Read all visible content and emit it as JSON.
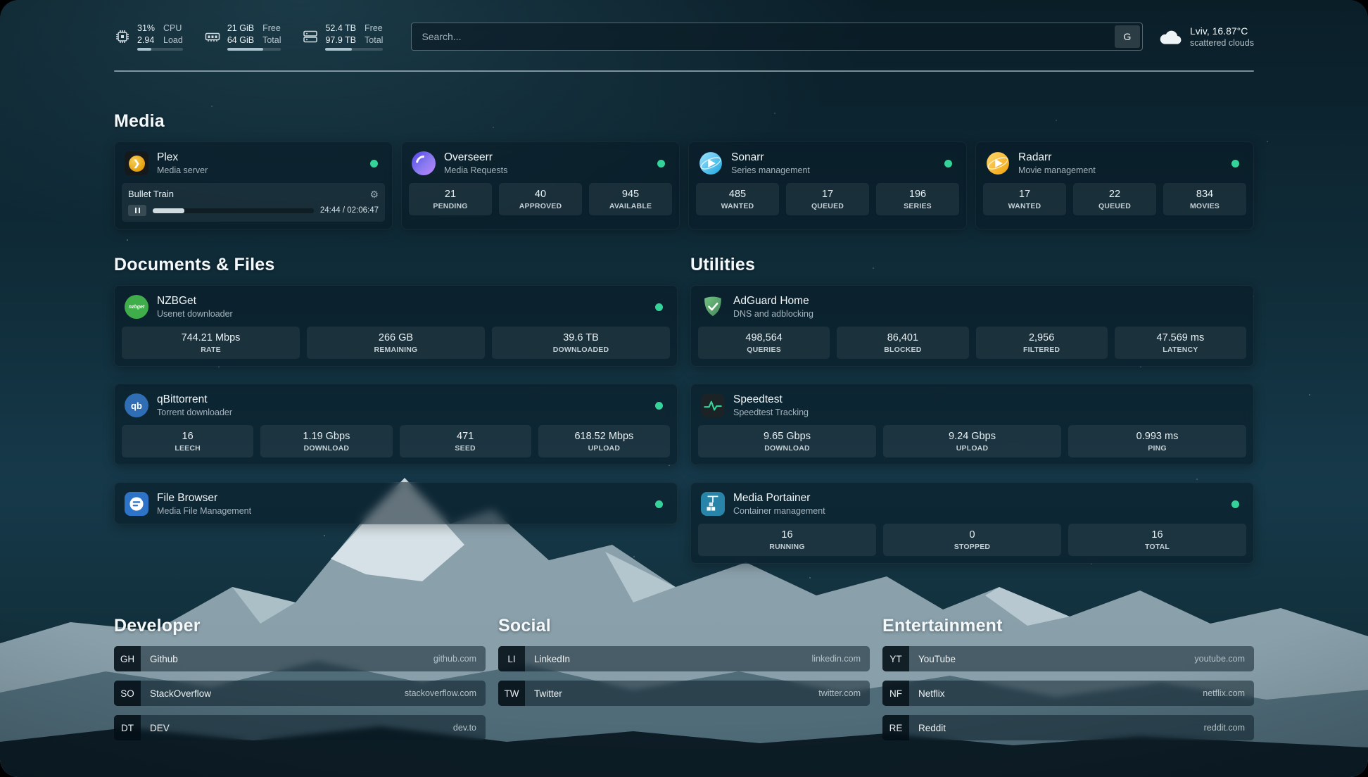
{
  "theme": {
    "status-green": "#34d399",
    "accent": "#a9c2cd"
  },
  "topbar": {
    "widgets": [
      {
        "id": "cpu",
        "line1": "31%",
        "line2": "2.94",
        "label1": "CPU",
        "label2": "Load",
        "percent": 31
      },
      {
        "id": "memory",
        "line1": "21 GiB",
        "line2": "64 GiB",
        "label1": "Free",
        "label2": "Total",
        "percent": 67
      },
      {
        "id": "disk",
        "line1": "52.4 TB",
        "line2": "97.9 TB",
        "label1": "Free",
        "label2": "Total",
        "percent": 46
      }
    ],
    "search": {
      "placeholder": "Search...",
      "provider": "G"
    },
    "weather": {
      "location": "Lviv, 16.87°C",
      "condition": "scattered clouds"
    }
  },
  "sections": {
    "media": {
      "title": "Media"
    },
    "documents": {
      "title": "Documents & Files"
    },
    "utilities": {
      "title": "Utilities"
    }
  },
  "services": {
    "plex": {
      "title": "Plex",
      "subtitle": "Media server",
      "now_playing": {
        "title": "Bullet Train",
        "time_display": "24:44 / 02:06:47",
        "percent": 19.5
      }
    },
    "overseerr": {
      "title": "Overseerr",
      "subtitle": "Media Requests",
      "stats": [
        {
          "value": "21",
          "label": "PENDING"
        },
        {
          "value": "40",
          "label": "APPROVED"
        },
        {
          "value": "945",
          "label": "AVAILABLE"
        }
      ]
    },
    "sonarr": {
      "title": "Sonarr",
      "subtitle": "Series management",
      "stats": [
        {
          "value": "485",
          "label": "WANTED"
        },
        {
          "value": "17",
          "label": "QUEUED"
        },
        {
          "value": "196",
          "label": "SERIES"
        }
      ]
    },
    "radarr": {
      "title": "Radarr",
      "subtitle": "Movie management",
      "stats": [
        {
          "value": "17",
          "label": "WANTED"
        },
        {
          "value": "22",
          "label": "QUEUED"
        },
        {
          "value": "834",
          "label": "MOVIES"
        }
      ]
    },
    "nzbget": {
      "title": "NZBGet",
      "subtitle": "Usenet downloader",
      "icon_text": "nzbget",
      "stats": [
        {
          "value": "744.21 Mbps",
          "label": "RATE"
        },
        {
          "value": "266 GB",
          "label": "REMAINING"
        },
        {
          "value": "39.6 TB",
          "label": "DOWNLOADED"
        }
      ]
    },
    "qbittorrent": {
      "title": "qBittorrent",
      "subtitle": "Torrent downloader",
      "icon_text": "qb",
      "stats": [
        {
          "value": "16",
          "label": "LEECH"
        },
        {
          "value": "1.19 Gbps",
          "label": "DOWNLOAD"
        },
        {
          "value": "471",
          "label": "SEED"
        },
        {
          "value": "618.52 Mbps",
          "label": "UPLOAD"
        }
      ]
    },
    "filebrowser": {
      "title": "File Browser",
      "subtitle": "Media File Management"
    },
    "adguard": {
      "title": "AdGuard Home",
      "subtitle": "DNS and adblocking",
      "stats": [
        {
          "value": "498,564",
          "label": "QUERIES"
        },
        {
          "value": "86,401",
          "label": "BLOCKED"
        },
        {
          "value": "2,956",
          "label": "FILTERED"
        },
        {
          "value": "47.569 ms",
          "label": "LATENCY"
        }
      ]
    },
    "speedtest": {
      "title": "Speedtest",
      "subtitle": "Speedtest Tracking",
      "stats": [
        {
          "value": "9.65 Gbps",
          "label": "DOWNLOAD"
        },
        {
          "value": "9.24 Gbps",
          "label": "UPLOAD"
        },
        {
          "value": "0.993 ms",
          "label": "PING"
        }
      ]
    },
    "portainer": {
      "title": "Media Portainer",
      "subtitle": "Container management",
      "stats": [
        {
          "value": "16",
          "label": "RUNNING"
        },
        {
          "value": "0",
          "label": "STOPPED"
        },
        {
          "value": "16",
          "label": "TOTAL"
        }
      ]
    }
  },
  "bookmarks": {
    "developer": {
      "title": "Developer",
      "items": [
        {
          "abbr": "GH",
          "name": "Github",
          "url": "github.com"
        },
        {
          "abbr": "SO",
          "name": "StackOverflow",
          "url": "stackoverflow.com"
        },
        {
          "abbr": "DT",
          "name": "DEV",
          "url": "dev.to"
        }
      ]
    },
    "social": {
      "title": "Social",
      "items": [
        {
          "abbr": "LI",
          "name": "LinkedIn",
          "url": "linkedin.com"
        },
        {
          "abbr": "TW",
          "name": "Twitter",
          "url": "twitter.com"
        }
      ]
    },
    "entertainment": {
      "title": "Entertainment",
      "items": [
        {
          "abbr": "YT",
          "name": "YouTube",
          "url": "youtube.com"
        },
        {
          "abbr": "NF",
          "name": "Netflix",
          "url": "netflix.com"
        },
        {
          "abbr": "RE",
          "name": "Reddit",
          "url": "reddit.com"
        }
      ]
    }
  }
}
